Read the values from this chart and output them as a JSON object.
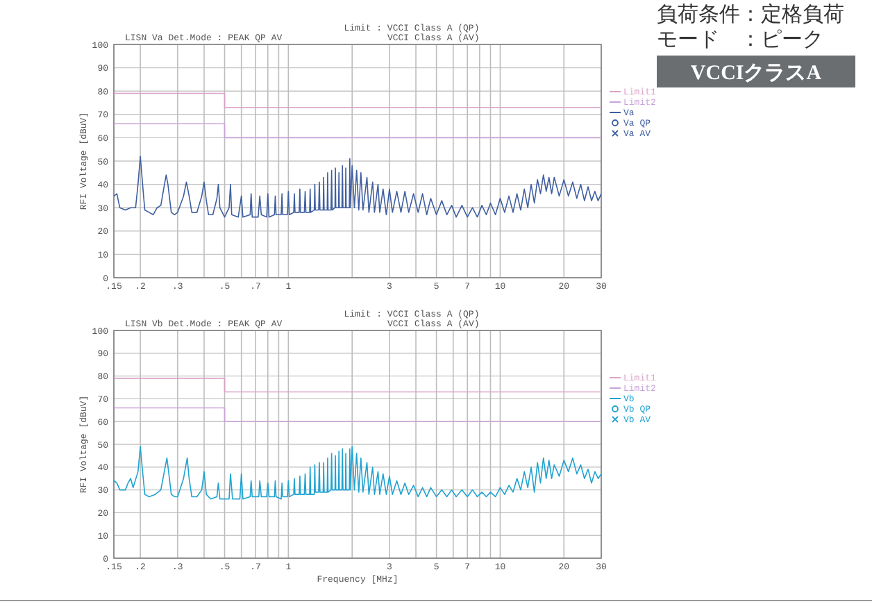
{
  "chart_data": [
    {
      "type": "line",
      "title": "LISN Va  Det.Mode : PEAK QP AV",
      "annotations": [
        "Limit : VCCI Class A (QP)",
        "VCCI Class A (AV)"
      ],
      "ylabel": "RFI Voltage [dBuV]",
      "log": "x",
      "xlim": [
        0.15,
        30
      ],
      "xticks": [
        {
          "value": 0.15,
          "label": ".15"
        },
        {
          "value": 0.2,
          "label": ".2"
        },
        {
          "value": 0.3,
          "label": ".3"
        },
        {
          "value": 0.4,
          "label": null
        },
        {
          "value": 0.5,
          "label": ".5"
        },
        {
          "value": 0.6,
          "label": null
        },
        {
          "value": 0.7,
          "label": ".7"
        },
        {
          "value": 0.8,
          "label": null
        },
        {
          "value": 0.9,
          "label": null
        },
        1,
        {
          "value": 2,
          "label": null
        },
        3,
        {
          "value": 4,
          "label": null
        },
        5,
        {
          "value": 6,
          "label": null
        },
        7,
        {
          "value": 8,
          "label": null
        },
        {
          "value": 9,
          "label": null
        },
        10,
        20,
        30
      ],
      "ylim": [
        0,
        100
      ],
      "yticks": [
        0,
        10,
        20,
        30,
        40,
        50,
        60,
        70,
        80,
        90,
        100
      ],
      "grid": true,
      "legend": "right",
      "series": [
        {
          "name": "Limit1",
          "type": "line",
          "color": "#d9a3c6",
          "x": [
            0.15,
            0.5,
            0.5,
            30
          ],
          "values": [
            79,
            79,
            73,
            73
          ]
        },
        {
          "name": "Limit2",
          "type": "line",
          "color": "#c9a3d9",
          "x": [
            0.15,
            0.5,
            0.5,
            30
          ],
          "values": [
            66,
            66,
            60,
            60
          ]
        },
        {
          "name": "Va",
          "type": "line",
          "color": "#3f5fa0",
          "x": [
            0.15,
            0.155,
            0.16,
            0.17,
            0.18,
            0.19,
            0.195,
            0.2,
            0.205,
            0.21,
            0.22,
            0.23,
            0.24,
            0.25,
            0.26,
            0.265,
            0.27,
            0.28,
            0.29,
            0.3,
            0.32,
            0.33,
            0.34,
            0.35,
            0.37,
            0.39,
            0.4,
            0.41,
            0.42,
            0.44,
            0.46,
            0.467,
            0.475,
            0.5,
            0.525,
            0.533,
            0.54,
            0.58,
            0.6,
            0.61,
            0.66,
            0.667,
            0.675,
            0.72,
            0.733,
            0.745,
            0.79,
            0.8,
            0.81,
            0.86,
            0.867,
            0.875,
            0.925,
            0.933,
            0.94,
            0.99,
            1.0,
            1.01,
            1.06,
            1.067,
            1.075,
            1.125,
            1.133,
            1.14,
            1.19,
            1.2,
            1.21,
            1.26,
            1.267,
            1.275,
            1.325,
            1.333,
            1.34,
            1.39,
            1.4,
            1.41,
            1.46,
            1.467,
            1.475,
            1.525,
            1.533,
            1.54,
            1.59,
            1.6,
            1.61,
            1.66,
            1.667,
            1.675,
            1.725,
            1.733,
            1.74,
            1.79,
            1.8,
            1.81,
            1.86,
            1.867,
            1.875,
            1.94,
            1.95,
            1.96,
            2.0,
            2.05,
            2.1,
            2.15,
            2.2,
            2.25,
            2.35,
            2.4,
            2.5,
            2.55,
            2.65,
            2.7,
            2.8,
            2.9,
            3.0,
            3.1,
            3.25,
            3.4,
            3.55,
            3.7,
            3.9,
            4.1,
            4.3,
            4.5,
            4.7,
            5.0,
            5.3,
            5.6,
            5.9,
            6.2,
            6.6,
            7.0,
            7.4,
            7.8,
            8.2,
            8.6,
            9.0,
            9.5,
            10,
            10.5,
            11,
            11.5,
            12,
            12.5,
            13,
            13.5,
            14,
            14.5,
            15,
            15.5,
            16,
            16.5,
            17,
            17.5,
            18,
            19,
            20,
            21,
            22,
            23,
            24,
            25,
            26,
            27,
            28,
            29,
            30
          ],
          "values": [
            35,
            36,
            30,
            29,
            30,
            30,
            40,
            52,
            40,
            29,
            28,
            27,
            30,
            31,
            40,
            44,
            40,
            28,
            27,
            28,
            35,
            41,
            35,
            28,
            28,
            35,
            41,
            33,
            27,
            27,
            34,
            40,
            30,
            26,
            30,
            40,
            27,
            26,
            35,
            26,
            27,
            36,
            26,
            26,
            35,
            27,
            26,
            36,
            26,
            27,
            35,
            27,
            27,
            36,
            27,
            27,
            37,
            27,
            28,
            36,
            28,
            28,
            38,
            28,
            28,
            37,
            28,
            28,
            38,
            28,
            29,
            40,
            29,
            29,
            41,
            29,
            29,
            43,
            29,
            29,
            45,
            29,
            29,
            46,
            29,
            30,
            47,
            30,
            30,
            45,
            30,
            30,
            48,
            30,
            30,
            47,
            30,
            30,
            51,
            30,
            48,
            30,
            46,
            29,
            45,
            29,
            43,
            28,
            41,
            28,
            40,
            28,
            38,
            27,
            38,
            28,
            37,
            28,
            37,
            28,
            36,
            28,
            36,
            27,
            34,
            27,
            33,
            27,
            31,
            26,
            31,
            26,
            30,
            26,
            31,
            27,
            32,
            27,
            34,
            28,
            35,
            28,
            36,
            29,
            38,
            30,
            40,
            32,
            42,
            36,
            44,
            37,
            43,
            36,
            43,
            35,
            42,
            35,
            41,
            34,
            40,
            33,
            39,
            33,
            37,
            33,
            36
          ]
        },
        {
          "name": "Va QP",
          "type": "scatter",
          "marker": "circle",
          "color": "#3f5fa0"
        },
        {
          "name": "Va AV",
          "type": "scatter",
          "marker": "cross",
          "color": "#3f5fa0"
        }
      ]
    },
    {
      "type": "other",
      "annotations": [
        "負荷条件：定格負荷",
        "モード　：ピーク",
        "VCCIクラスA"
      ]
    },
    {
      "type": "line",
      "title": "LISN Vb  Det.Mode : PEAK QP AV",
      "annotations": [
        "Limit : VCCI Class A (QP)",
        "VCCI Class A (AV)"
      ],
      "xlabel": "Frequency [MHz]",
      "ylabel": "RFI Voltage [dBuV]",
      "log": "x",
      "xlim": [
        0.15,
        30
      ],
      "xticks": [
        {
          "value": 0.15,
          "label": ".15"
        },
        {
          "value": 0.2,
          "label": ".2"
        },
        {
          "value": 0.3,
          "label": ".3"
        },
        {
          "value": 0.4,
          "label": null
        },
        {
          "value": 0.5,
          "label": ".5"
        },
        {
          "value": 0.6,
          "label": null
        },
        {
          "value": 0.7,
          "label": ".7"
        },
        {
          "value": 0.8,
          "label": null
        },
        {
          "value": 0.9,
          "label": null
        },
        1,
        {
          "value": 2,
          "label": null
        },
        3,
        {
          "value": 4,
          "label": null
        },
        5,
        {
          "value": 6,
          "label": null
        },
        7,
        {
          "value": 8,
          "label": null
        },
        {
          "value": 9,
          "label": null
        },
        10,
        20,
        30
      ],
      "ylim": [
        0,
        100
      ],
      "yticks": [
        0,
        10,
        20,
        30,
        40,
        50,
        60,
        70,
        80,
        90,
        100
      ],
      "grid": true,
      "legend": "right",
      "series": [
        {
          "name": "Limit1",
          "type": "line",
          "color": "#d9a3c6",
          "x": [
            0.15,
            0.5,
            0.5,
            30
          ],
          "values": [
            79,
            79,
            73,
            73
          ]
        },
        {
          "name": "Limit2",
          "type": "line",
          "color": "#c9a3d9",
          "x": [
            0.15,
            0.5,
            0.5,
            30
          ],
          "values": [
            66,
            66,
            60,
            60
          ]
        },
        {
          "name": "Vb",
          "type": "line",
          "color": "#1fa3d1",
          "x": [
            0.15,
            0.155,
            0.16,
            0.17,
            0.175,
            0.18,
            0.185,
            0.195,
            0.2,
            0.205,
            0.21,
            0.22,
            0.235,
            0.25,
            0.262,
            0.267,
            0.272,
            0.28,
            0.29,
            0.3,
            0.32,
            0.333,
            0.34,
            0.35,
            0.37,
            0.39,
            0.4,
            0.41,
            0.43,
            0.46,
            0.467,
            0.475,
            0.525,
            0.533,
            0.545,
            0.59,
            0.6,
            0.61,
            0.66,
            0.667,
            0.675,
            0.725,
            0.733,
            0.745,
            0.79,
            0.8,
            0.81,
            0.86,
            0.867,
            0.875,
            0.925,
            0.933,
            0.94,
            0.99,
            1.0,
            1.01,
            1.06,
            1.067,
            1.075,
            1.125,
            1.133,
            1.14,
            1.19,
            1.2,
            1.21,
            1.26,
            1.267,
            1.275,
            1.325,
            1.333,
            1.34,
            1.39,
            1.4,
            1.41,
            1.46,
            1.467,
            1.475,
            1.525,
            1.533,
            1.54,
            1.59,
            1.6,
            1.61,
            1.66,
            1.667,
            1.675,
            1.725,
            1.733,
            1.74,
            1.79,
            1.8,
            1.81,
            1.86,
            1.867,
            1.875,
            1.94,
            1.95,
            1.96,
            2.0,
            2.05,
            2.1,
            2.15,
            2.2,
            2.25,
            2.35,
            2.4,
            2.5,
            2.55,
            2.65,
            2.7,
            2.8,
            2.9,
            3.0,
            3.1,
            3.25,
            3.4,
            3.55,
            3.7,
            3.9,
            4.1,
            4.3,
            4.5,
            4.7,
            5.0,
            5.3,
            5.6,
            5.9,
            6.2,
            6.6,
            7.0,
            7.4,
            7.8,
            8.2,
            8.6,
            9.0,
            9.5,
            10,
            10.5,
            11,
            11.5,
            12,
            12.5,
            13,
            13.5,
            14,
            14.5,
            15,
            15.5,
            16,
            16.5,
            17,
            17.5,
            18,
            19,
            20,
            21,
            22,
            23,
            24,
            25,
            26,
            27,
            28,
            29,
            30
          ],
          "values": [
            34,
            33,
            30,
            30,
            33,
            35,
            31,
            38,
            49,
            38,
            28,
            27,
            28,
            30,
            40,
            44,
            38,
            28,
            27,
            27,
            35,
            44,
            35,
            27,
            27,
            30,
            38,
            28,
            26,
            27,
            33,
            26,
            26,
            37,
            26,
            26,
            37,
            26,
            27,
            34,
            27,
            27,
            34,
            27,
            27,
            33,
            27,
            27,
            34,
            27,
            26,
            33,
            27,
            27,
            34,
            27,
            28,
            35,
            28,
            28,
            36,
            28,
            28,
            37,
            28,
            28,
            40,
            28,
            28,
            41,
            29,
            29,
            42,
            29,
            29,
            42,
            29,
            29,
            44,
            29,
            30,
            46,
            30,
            30,
            45,
            30,
            30,
            47,
            30,
            30,
            48,
            30,
            30,
            46,
            30,
            30,
            48,
            30,
            49,
            30,
            46,
            29,
            44,
            29,
            42,
            28,
            40,
            28,
            38,
            28,
            37,
            28,
            36,
            28,
            34,
            28,
            33,
            28,
            32,
            27,
            31,
            27,
            31,
            27,
            30,
            27,
            30,
            27,
            30,
            27,
            30,
            27,
            29,
            27,
            29,
            27,
            31,
            28,
            32,
            29,
            35,
            30,
            38,
            31,
            40,
            29,
            42,
            33,
            44,
            35,
            43,
            35,
            41,
            36,
            43,
            38,
            44,
            37,
            41,
            35,
            39,
            33,
            38,
            35,
            37
          ]
        },
        {
          "name": "Vb QP",
          "type": "scatter",
          "marker": "circle",
          "color": "#1fa3d1"
        },
        {
          "name": "Vb AV",
          "type": "scatter",
          "marker": "cross",
          "color": "#1fa3d1"
        }
      ]
    }
  ]
}
